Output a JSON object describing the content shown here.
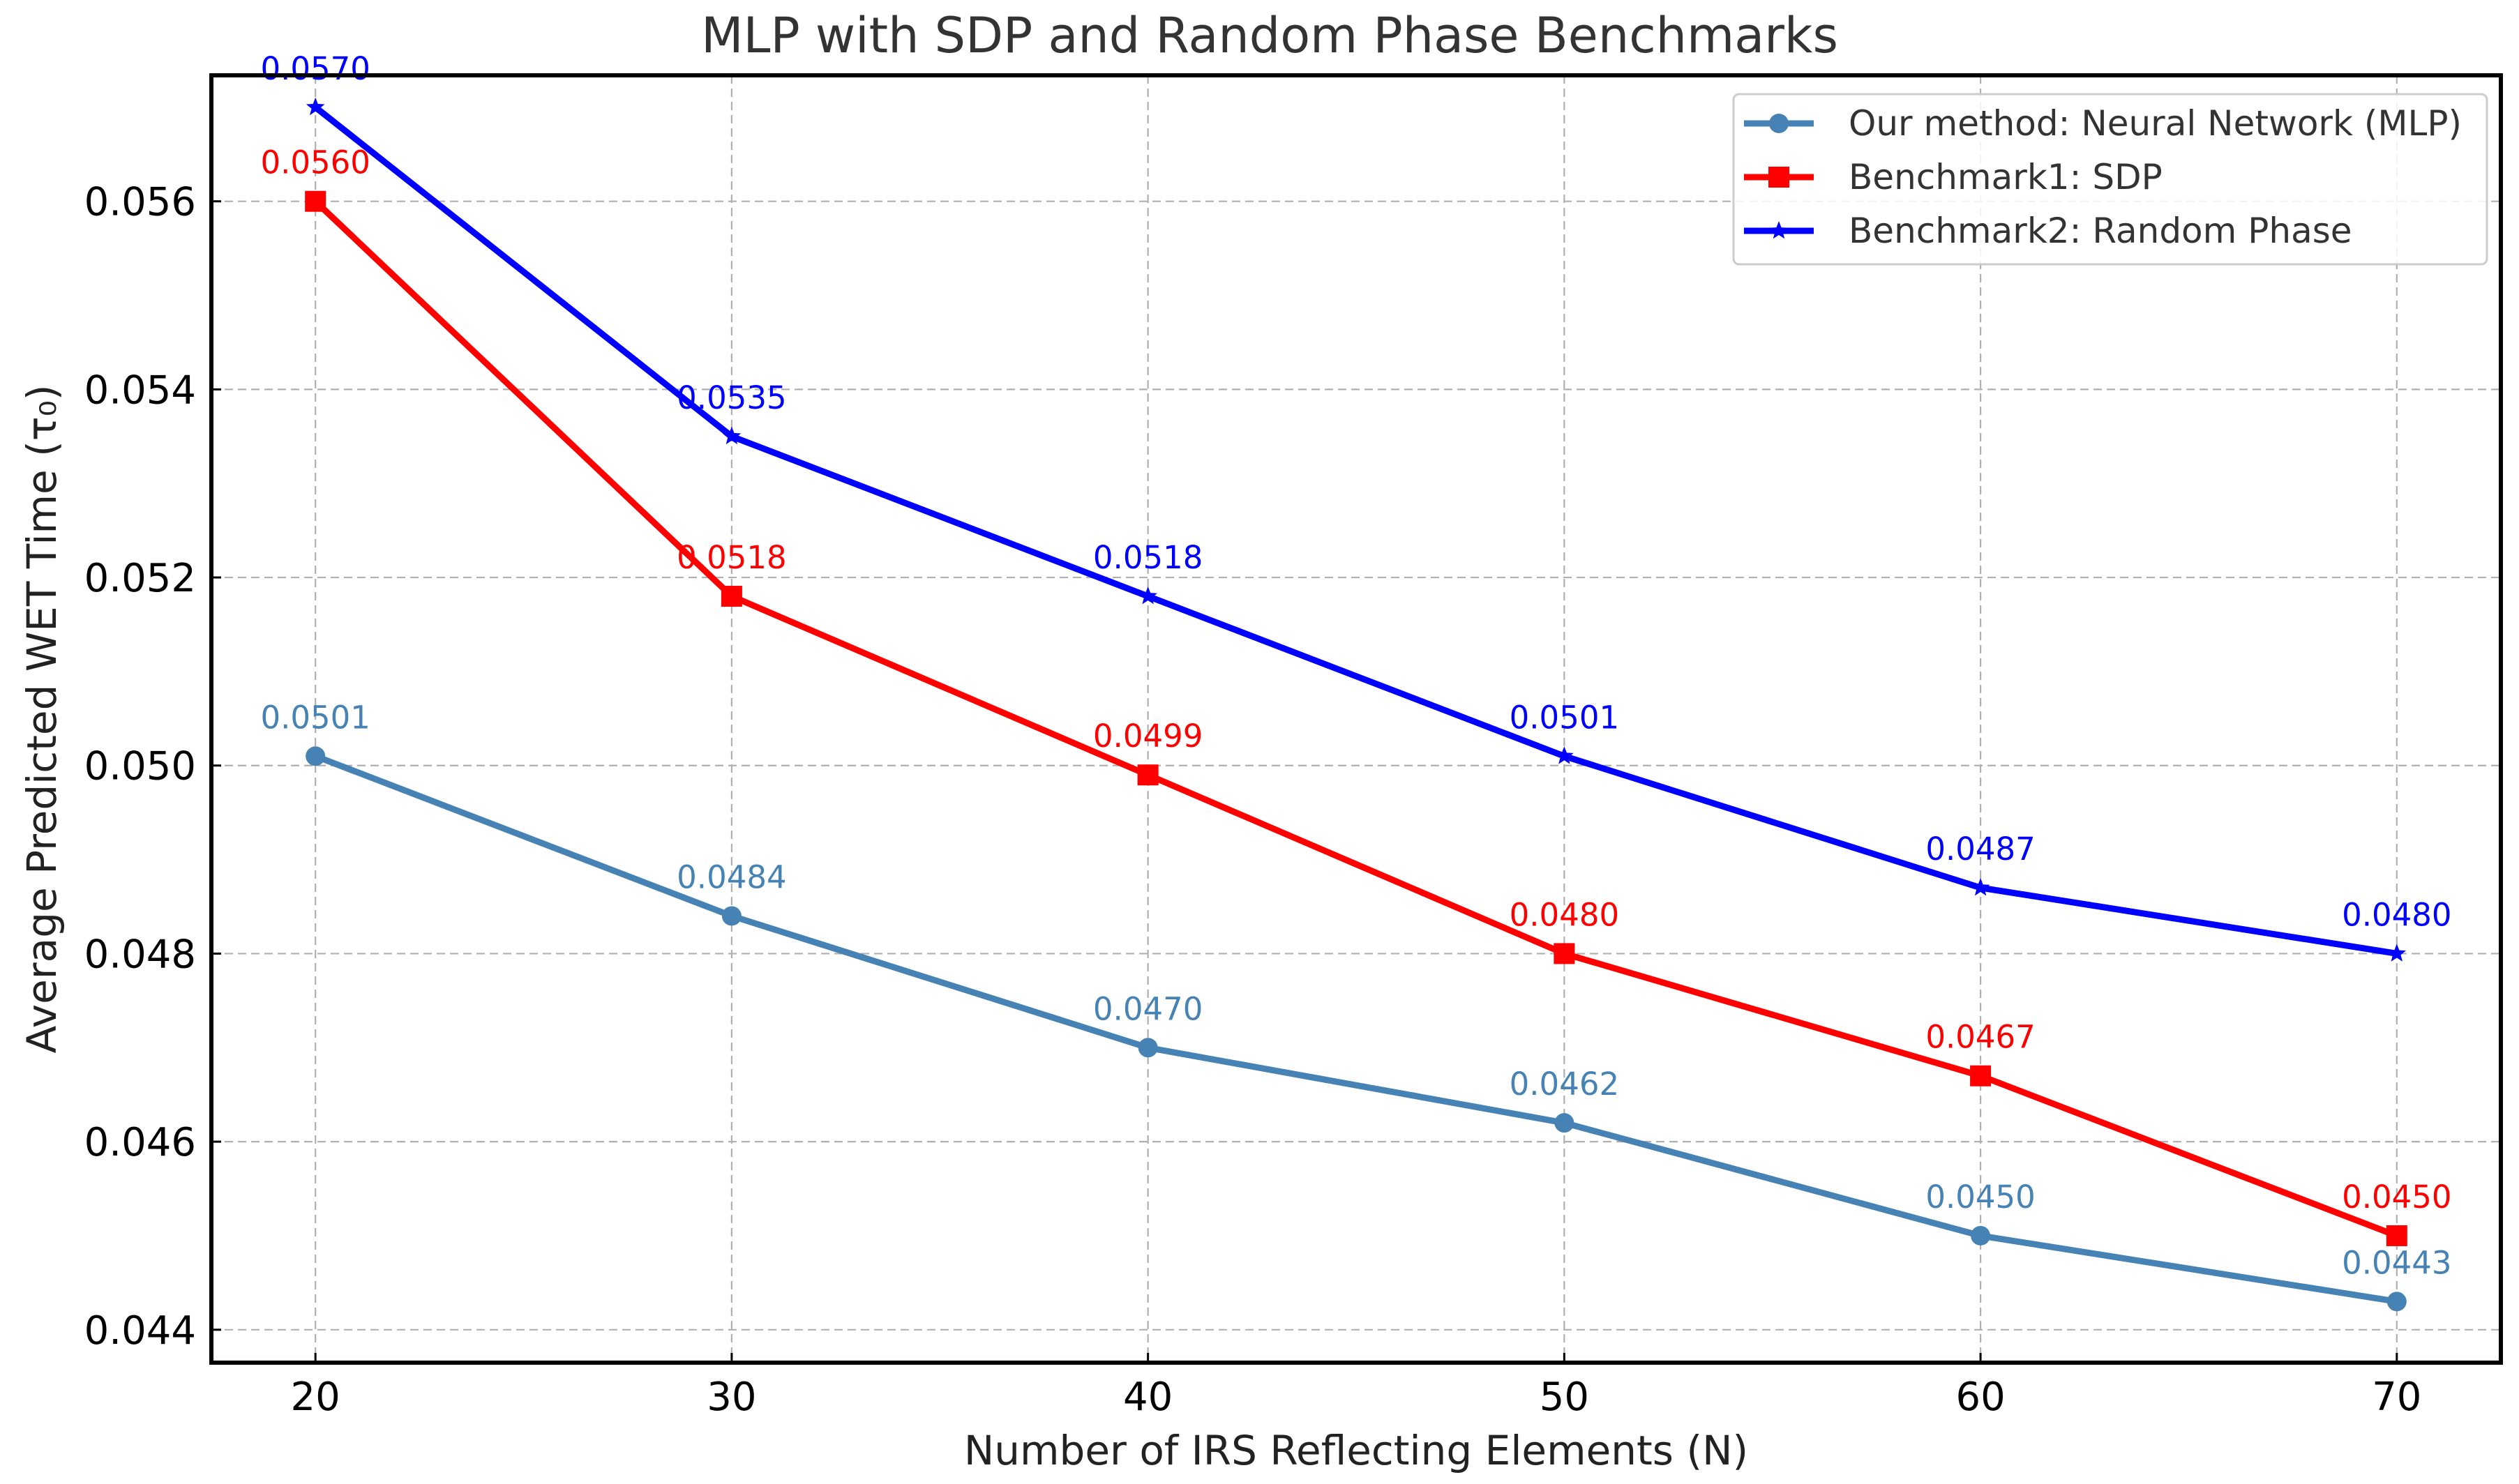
{
  "chart_data": {
    "type": "line",
    "title": "MLP with SDP and Random Phase Benchmarks",
    "xlabel": "Number of IRS Reflecting Elements (N)",
    "ylabel": "Average Predicted WET Time (τ₀)",
    "x": [
      20,
      30,
      40,
      50,
      60,
      70
    ],
    "x_ticks": [
      "20",
      "30",
      "40",
      "50",
      "60",
      "70"
    ],
    "xlim": [
      17.5,
      72.5
    ],
    "y_ticks": [
      "0.044",
      "0.046",
      "0.048",
      "0.050",
      "0.052",
      "0.054",
      "0.056"
    ],
    "y_tick_values": [
      0.044,
      0.046,
      0.048,
      0.05,
      0.052,
      0.054,
      0.056
    ],
    "ylim": [
      0.04365,
      0.05734
    ],
    "grid": true,
    "legend_position": "top-right",
    "series": [
      {
        "name": "Our method: Neural Network (MLP)",
        "color": "#4682b4",
        "marker": "circle",
        "values": [
          0.0501,
          0.0484,
          0.047,
          0.0462,
          0.045,
          0.0443
        ],
        "labels": [
          "0.0501",
          "0.0484",
          "0.0470",
          "0.0462",
          "0.0450",
          "0.0443"
        ]
      },
      {
        "name": "Benchmark1: SDP",
        "color": "#ff0000",
        "marker": "square",
        "values": [
          0.056,
          0.0518,
          0.0499,
          0.048,
          0.0467,
          0.045
        ],
        "labels": [
          "0.0560",
          "0.0518",
          "0.0499",
          "0.0480",
          "0.0467",
          "0.0450"
        ]
      },
      {
        "name": "Benchmark2: Random Phase",
        "color": "#0000ff",
        "marker": "star",
        "values": [
          0.057,
          0.0535,
          0.0518,
          0.0501,
          0.0487,
          0.048
        ],
        "labels": [
          "0.0570",
          "0.0535",
          "0.0518",
          "0.0501",
          "0.0487",
          "0.0480"
        ]
      }
    ]
  }
}
